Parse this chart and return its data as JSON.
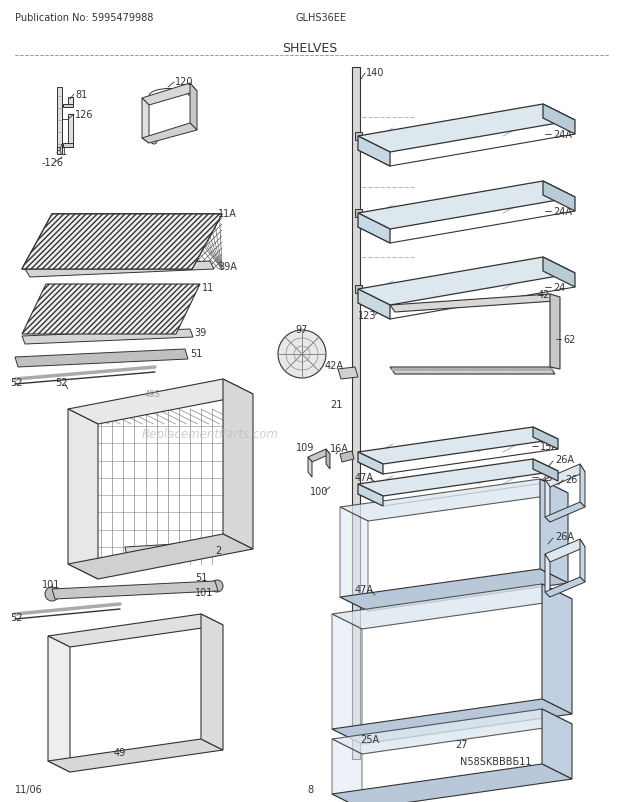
{
  "title": "SHELVES",
  "header_left": "Publication No: 5995479988",
  "header_center": "GLHS36EE",
  "footer_left": "11/06",
  "footer_center": "8",
  "watermark": "ReplacementParts.com",
  "bottom_right_code": "N58SKBBBБ11",
  "bg_color": "#ffffff",
  "line_color": "#333333",
  "text_color": "#333333",
  "gray1": "#bbbbbb",
  "gray2": "#888888",
  "gray3": "#555555",
  "shelf_fill": "#d8d8d8",
  "shelf_top": "#e8e8e8",
  "wire_fill": "#cccccc"
}
